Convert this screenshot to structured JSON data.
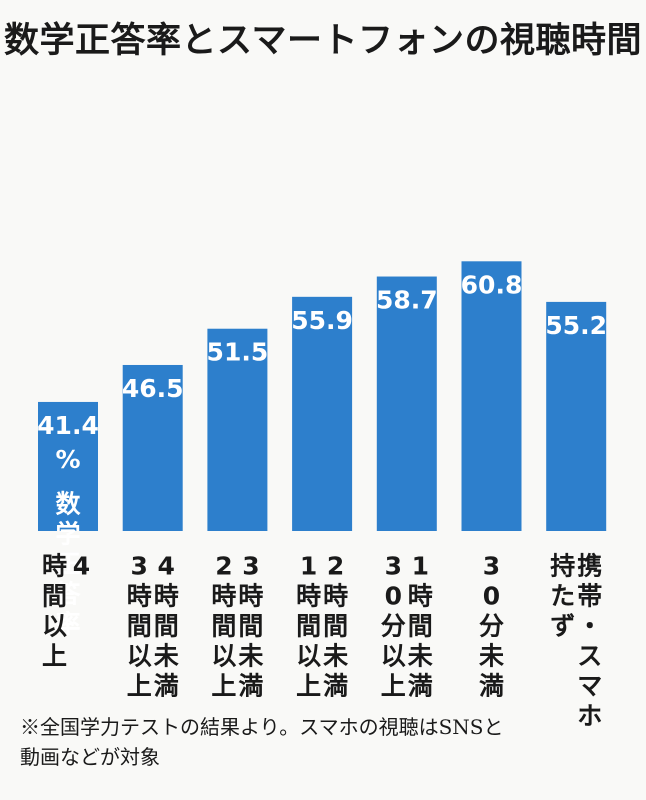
{
  "chart_data": {
    "type": "bar",
    "title": "数学正答率とスマートフォンの視聴時間",
    "categories": [
      [
        "4",
        "時間以上"
      ],
      [
        "4時間未満",
        "3時間以上"
      ],
      [
        "3時間未満",
        "2時間以上"
      ],
      [
        "2時間未満",
        "1時間以上"
      ],
      [
        "1時間未満",
        "30分以上"
      ],
      [
        "30分未満"
      ],
      [
        "携帯・スマホ",
        "持たず"
      ]
    ],
    "values": [
      41.4,
      46.5,
      51.5,
      55.9,
      58.7,
      60.8,
      55.2
    ],
    "value_labels": [
      "41.4",
      "46.5",
      "51.5",
      "55.9",
      "58.7",
      "60.8",
      "55.2"
    ],
    "unit": "%",
    "series_note": "数学正答率",
    "bar_color": "#2d7fcc",
    "grid": false
  },
  "footnote": {
    "line1": "※全国学力テストの結果より。スマホの視聴はSNSと",
    "line2": "動画などが対象"
  }
}
